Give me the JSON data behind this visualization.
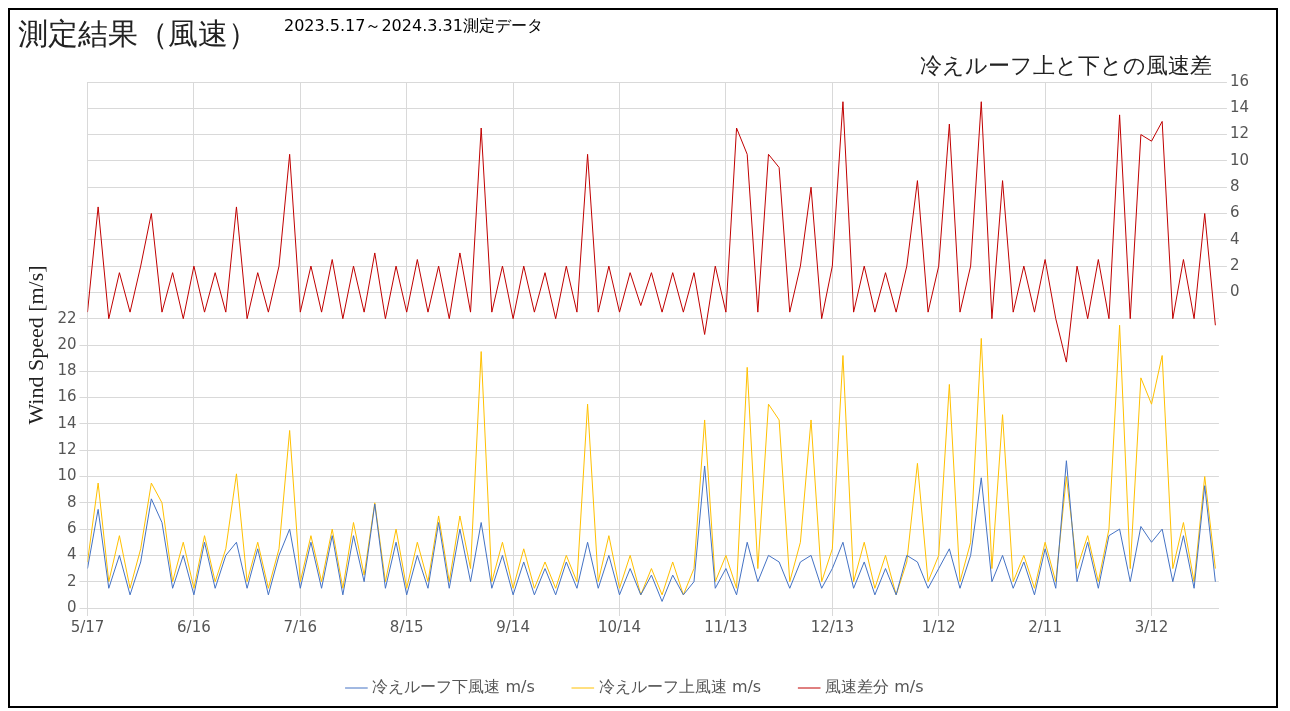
{
  "chart_data": {
    "type": "line",
    "title": "測定結果（風速）",
    "subtitle": "2023.5.17～2024.3.31測定データ",
    "ylabel": "Wind Speed [m/s]",
    "annotations": [
      "冷えルーフ上と下との風速差"
    ],
    "grid": true,
    "legend": "bottom",
    "marker": "none",
    "line_style": "solid",
    "xlim": [
      "2023-05-17",
      "2024-03-31"
    ],
    "xticks": [
      {
        "value": "2023-05-17",
        "label": "5/17"
      },
      {
        "value": "2023-06-16",
        "label": "6/16"
      },
      {
        "value": "2023-07-16",
        "label": "7/16"
      },
      {
        "value": "2023-08-15",
        "label": "8/15"
      },
      {
        "value": "2023-09-14",
        "label": "9/14"
      },
      {
        "value": "2023-10-14",
        "label": "10/14"
      },
      {
        "value": "2023-11-13",
        "label": "11/13"
      },
      {
        "value": "2023-12-13",
        "label": "12/13"
      },
      {
        "value": "2024-01-12",
        "label": "1/12"
      },
      {
        "value": "2024-02-11",
        "label": "2/11"
      },
      {
        "value": "2024-03-12",
        "label": "3/12"
      }
    ],
    "ylim": [
      0,
      40
    ],
    "yticks": [
      0,
      2,
      4,
      6,
      8,
      10,
      12,
      14,
      16,
      18,
      20,
      22
    ],
    "y2lim": [
      -24,
      16
    ],
    "y2ticks": [
      0,
      2,
      4,
      6,
      8,
      10,
      12,
      14,
      16
    ],
    "x": [
      "2023-05-17",
      "2023-05-20",
      "2023-05-23",
      "2023-05-26",
      "2023-05-29",
      "2023-06-01",
      "2023-06-04",
      "2023-06-07",
      "2023-06-10",
      "2023-06-13",
      "2023-06-16",
      "2023-06-19",
      "2023-06-22",
      "2023-06-25",
      "2023-06-28",
      "2023-07-01",
      "2023-07-04",
      "2023-07-07",
      "2023-07-10",
      "2023-07-13",
      "2023-07-16",
      "2023-07-19",
      "2023-07-22",
      "2023-07-25",
      "2023-07-28",
      "2023-07-31",
      "2023-08-03",
      "2023-08-06",
      "2023-08-09",
      "2023-08-12",
      "2023-08-15",
      "2023-08-18",
      "2023-08-21",
      "2023-08-24",
      "2023-08-27",
      "2023-08-30",
      "2023-09-02",
      "2023-09-05",
      "2023-09-08",
      "2023-09-11",
      "2023-09-14",
      "2023-09-17",
      "2023-09-20",
      "2023-09-23",
      "2023-09-26",
      "2023-09-29",
      "2023-10-02",
      "2023-10-05",
      "2023-10-08",
      "2023-10-11",
      "2023-10-14",
      "2023-10-17",
      "2023-10-20",
      "2023-10-23",
      "2023-10-26",
      "2023-10-29",
      "2023-11-01",
      "2023-11-04",
      "2023-11-07",
      "2023-11-10",
      "2023-11-13",
      "2023-11-16",
      "2023-11-19",
      "2023-11-22",
      "2023-11-25",
      "2023-11-28",
      "2023-12-01",
      "2023-12-04",
      "2023-12-07",
      "2023-12-10",
      "2023-12-13",
      "2023-12-16",
      "2023-12-19",
      "2023-12-22",
      "2023-12-25",
      "2023-12-28",
      "2023-12-31",
      "2024-01-03",
      "2024-01-06",
      "2024-01-09",
      "2024-01-12",
      "2024-01-15",
      "2024-01-18",
      "2024-01-21",
      "2024-01-24",
      "2024-01-27",
      "2024-01-30",
      "2024-02-02",
      "2024-02-05",
      "2024-02-08",
      "2024-02-11",
      "2024-02-14",
      "2024-02-17",
      "2024-02-20",
      "2024-02-23",
      "2024-02-26",
      "2024-02-29",
      "2024-03-03",
      "2024-03-06",
      "2024-03-09",
      "2024-03-12",
      "2024-03-15",
      "2024-03-18",
      "2024-03-21",
      "2024-03-24",
      "2024-03-27",
      "2024-03-30"
    ],
    "series": [
      {
        "name": "冷えルーフ下風速 m/s",
        "color": "#4472c4",
        "values": [
          3,
          7.5,
          1.5,
          4,
          1,
          3.5,
          8.3,
          6.5,
          1.5,
          4,
          1,
          5,
          1.5,
          4,
          5,
          1.5,
          4.5,
          1,
          4,
          6,
          1.5,
          5,
          1.5,
          5.5,
          1,
          5.5,
          2,
          7.9,
          1.5,
          5,
          1,
          4,
          1.5,
          6.5,
          1.5,
          6,
          2,
          6.5,
          1.5,
          4,
          1,
          3.5,
          1,
          3,
          1,
          3.5,
          1.5,
          5,
          1.5,
          4,
          1,
          3,
          1,
          2.5,
          0.5,
          2.5,
          1,
          2,
          10.8,
          1.5,
          3,
          1,
          5,
          2,
          4,
          3.5,
          1.5,
          3.5,
          4,
          1.5,
          3,
          5,
          1.5,
          3.5,
          1,
          3,
          1,
          4,
          3.5,
          1.5,
          3,
          4.5,
          1.5,
          4,
          9.9,
          2,
          4,
          1.5,
          3.5,
          1,
          4.5,
          1.5,
          11.2,
          2,
          5,
          1.5,
          5.5,
          6,
          2,
          6.2,
          5,
          6,
          2,
          5.5,
          1.5,
          9.3,
          2
        ]
      },
      {
        "name": "冷えルーフ上風速 m/s",
        "color": "#ffc000",
        "values": [
          3.5,
          9.5,
          2,
          5.5,
          1.5,
          4.5,
          9.5,
          8,
          2,
          5,
          1.5,
          5.5,
          2,
          4.5,
          10.2,
          2,
          5,
          1.5,
          4.5,
          13.5,
          2,
          5.5,
          2,
          6,
          1.5,
          6.5,
          2.5,
          8,
          2,
          6,
          1.5,
          5,
          2,
          7,
          2,
          7,
          3,
          19.5,
          2,
          5,
          1.5,
          4.5,
          1.5,
          3.5,
          1.5,
          4,
          2,
          15.5,
          2,
          5.5,
          1.5,
          4,
          1,
          3,
          1,
          3.5,
          1,
          3,
          14.3,
          2,
          4,
          1.5,
          18.3,
          3,
          15.5,
          14.3,
          2,
          5,
          14.3,
          2,
          4.5,
          19.2,
          2,
          5,
          1.5,
          4,
          1,
          3.5,
          11,
          2,
          4,
          17,
          2,
          5,
          20.5,
          3,
          14.7,
          2,
          4,
          1.5,
          5,
          2,
          10,
          3,
          5.5,
          2,
          6,
          21.5,
          3,
          17.5,
          15.5,
          19.2,
          3,
          6.5,
          2,
          10,
          3
        ]
      },
      {
        "name": "風速差分 m/s",
        "color": "#c00000",
        "axis": "y2",
        "values": [
          -1.5,
          6.5,
          -2,
          1.5,
          -1.5,
          2,
          6,
          -1.5,
          1.5,
          -2,
          2,
          -1.5,
          1.5,
          -1.5,
          6.5,
          -2,
          1.5,
          -1.5,
          2,
          10.5,
          -1.5,
          2,
          -1.5,
          2.5,
          -2,
          2,
          -1.5,
          3,
          -2,
          2,
          -1.5,
          2.5,
          -1.5,
          2,
          -2,
          3,
          -1.5,
          12.5,
          -1.5,
          2,
          -2,
          2,
          -1.5,
          1.5,
          -2,
          2,
          -1.5,
          10.5,
          -1.5,
          2,
          -1.5,
          1.5,
          -1,
          1.5,
          -1.5,
          1.5,
          -1.5,
          1.5,
          -3.2,
          2,
          -1.5,
          12.5,
          10.5,
          -1.5,
          10.5,
          9.5,
          -1.5,
          2,
          8,
          -2,
          2,
          14.5,
          -1.5,
          2,
          -1.5,
          1.5,
          -1.5,
          2,
          8.5,
          -1.5,
          2,
          12.8,
          -1.5,
          2,
          14.5,
          -2,
          8.5,
          -1.5,
          2,
          -1.5,
          2.5,
          -2,
          -5.3,
          2,
          -2,
          2.5,
          -2,
          13.5,
          -2,
          12,
          11.5,
          13,
          -2,
          2.5,
          -2,
          6,
          -2.5
        ]
      }
    ]
  }
}
